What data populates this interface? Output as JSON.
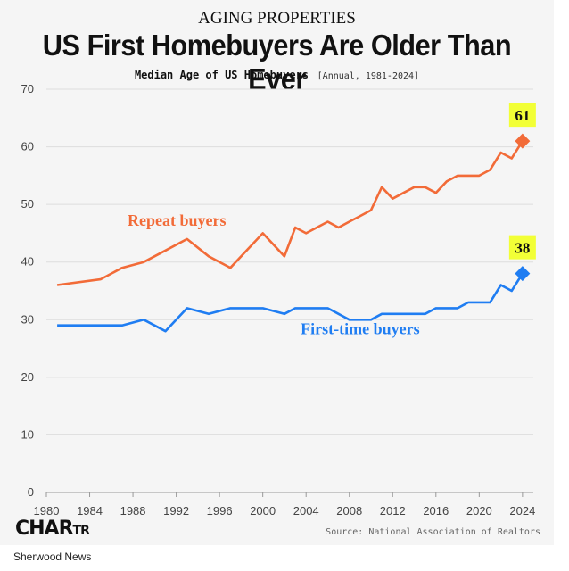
{
  "kicker": "AGING PROPERTIES",
  "title": "US First Homebuyers Are Older Than Ever",
  "subtitle": "Median Age of US Homebuyers",
  "subtitle_note": "[Annual, 1981-2024]",
  "logo": {
    "text_big": "CHAR",
    "text_small": "TR"
  },
  "source": "Source: National Association of Realtors",
  "footer": "Sherwood News",
  "colors": {
    "repeat": "#f26b38",
    "first": "#1f7df2",
    "highlight": "#f2ff36",
    "grid": "#dddddd"
  },
  "chart_data": {
    "type": "line",
    "x_ticks": [
      1980,
      1984,
      1988,
      1992,
      1996,
      2000,
      2004,
      2008,
      2012,
      2016,
      2020,
      2024
    ],
    "y_ticks": [
      0,
      10,
      20,
      30,
      40,
      50,
      60,
      70
    ],
    "xlim": [
      1980,
      2025
    ],
    "ylim": [
      0,
      70
    ],
    "series": [
      {
        "name": "Repeat buyers",
        "x": [
          1981,
          1985,
          1987,
          1989,
          1991,
          1993,
          1995,
          1997,
          2000,
          2002,
          2003,
          2004,
          2005,
          2006,
          2007,
          2008,
          2009,
          2010,
          2011,
          2012,
          2013,
          2014,
          2015,
          2016,
          2017,
          2018,
          2019,
          2020,
          2021,
          2022,
          2023,
          2024
        ],
        "values": [
          36,
          37,
          39,
          40,
          42,
          44,
          41,
          39,
          45,
          41,
          46,
          45,
          46,
          47,
          46,
          47,
          48,
          49,
          53,
          51,
          52,
          53,
          53,
          52,
          54,
          55,
          55,
          55,
          56,
          59,
          58,
          61
        ],
        "end_label": "61"
      },
      {
        "name": "First-time buyers",
        "x": [
          1981,
          1985,
          1987,
          1989,
          1991,
          1993,
          1995,
          1997,
          2000,
          2002,
          2003,
          2004,
          2005,
          2006,
          2007,
          2008,
          2009,
          2010,
          2011,
          2012,
          2013,
          2014,
          2015,
          2016,
          2017,
          2018,
          2019,
          2020,
          2021,
          2022,
          2023,
          2024
        ],
        "values": [
          29,
          29,
          29,
          30,
          28,
          32,
          31,
          32,
          32,
          31,
          32,
          32,
          32,
          32,
          31,
          30,
          30,
          30,
          31,
          31,
          31,
          31,
          31,
          32,
          32,
          32,
          33,
          33,
          33,
          36,
          35,
          38
        ],
        "end_label": "38"
      }
    ]
  }
}
